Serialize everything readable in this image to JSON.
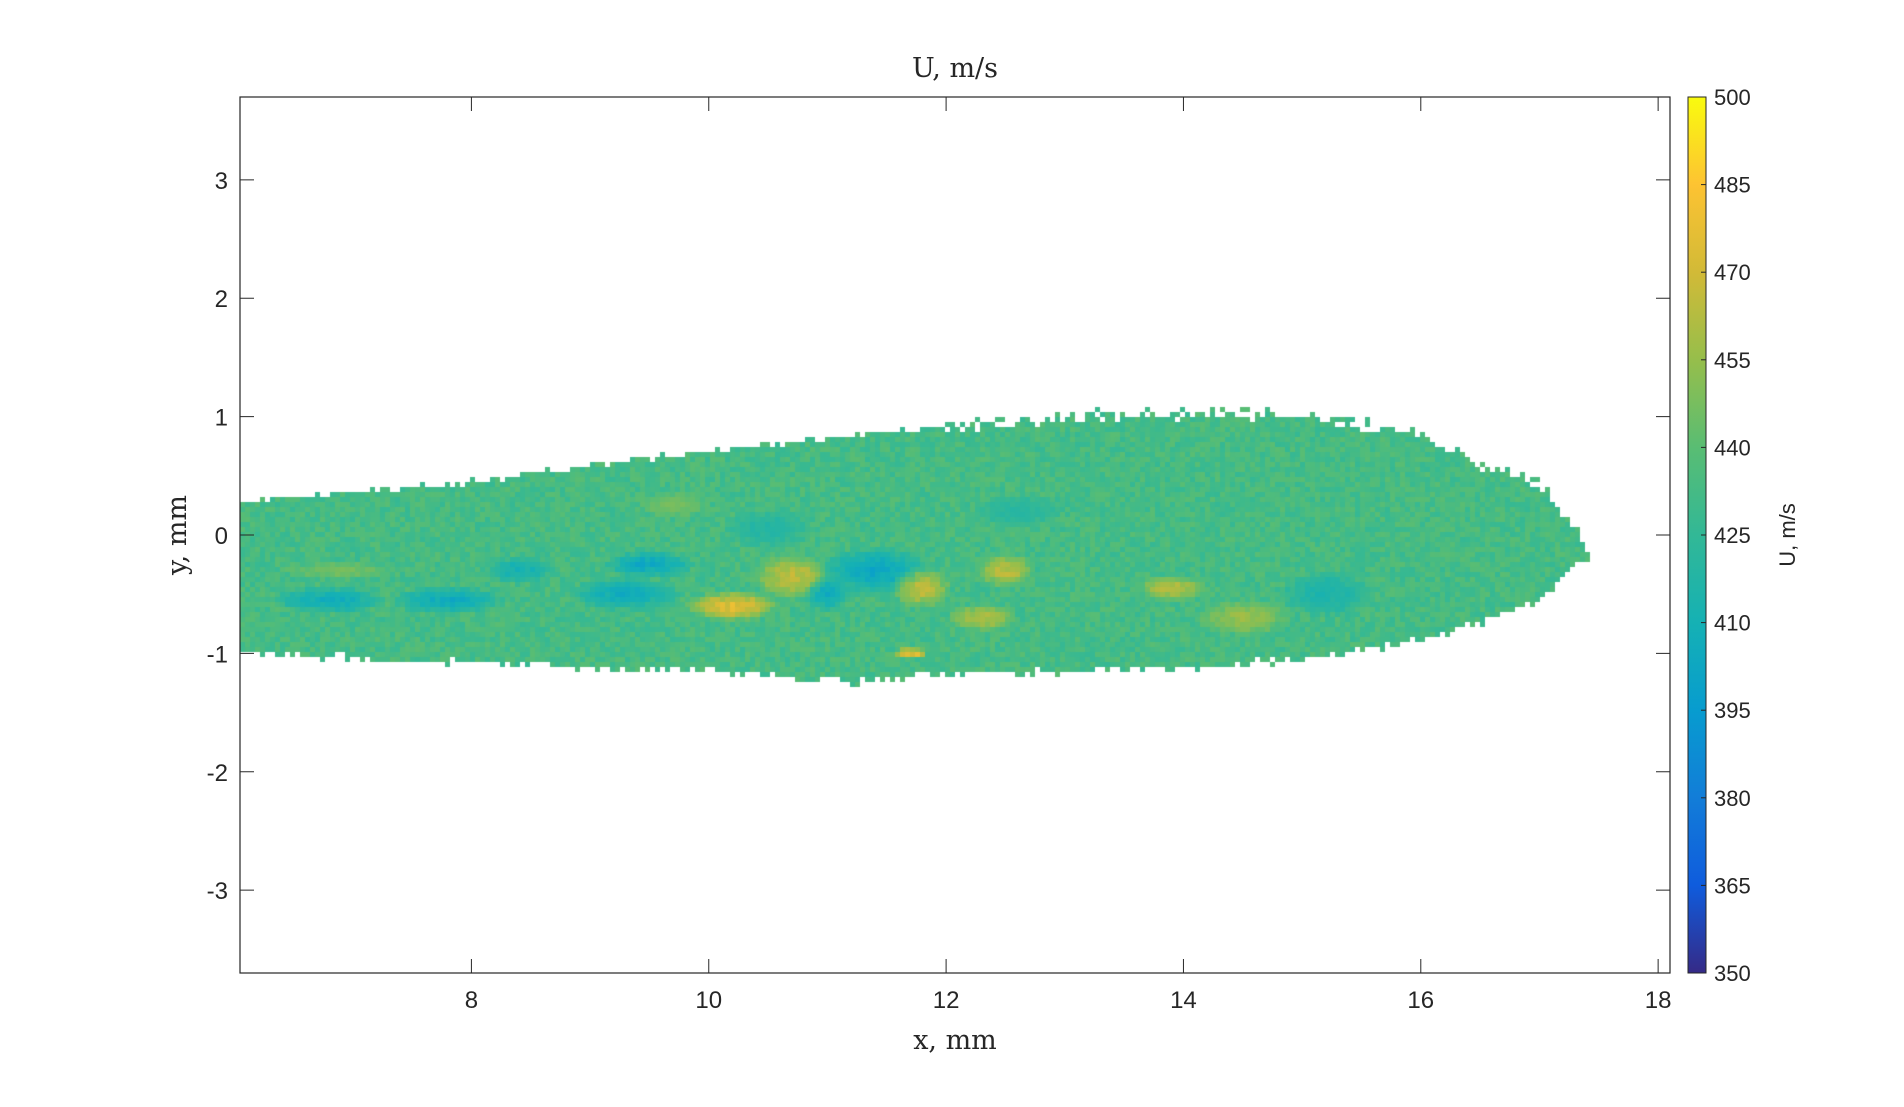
{
  "chart_data": {
    "type": "heatmap",
    "title": "U, m/s",
    "xlabel": "x, mm",
    "ylabel": "y, mm",
    "xlim": [
      6.05,
      18.1
    ],
    "ylim": [
      -3.7,
      3.7
    ],
    "xticks": [
      8,
      10,
      12,
      14,
      16,
      18
    ],
    "yticks": [
      -3,
      -2,
      -1,
      0,
      1,
      2,
      3
    ],
    "colorbar": {
      "label": "U, m/s",
      "range": [
        350,
        500
      ],
      "ticks": [
        350,
        365,
        380,
        395,
        410,
        425,
        440,
        455,
        470,
        485,
        500
      ],
      "colormap": "parula"
    },
    "field": {
      "description_values": "jet velocity field; background value about 433 m/s",
      "base_value": 433,
      "jet_upper_edge": [
        [
          6.05,
          0.28
        ],
        [
          8,
          0.45
        ],
        [
          10,
          0.72
        ],
        [
          11,
          0.82
        ],
        [
          12,
          0.92
        ],
        [
          13,
          1.0
        ],
        [
          14,
          1.02
        ],
        [
          15,
          1.02
        ],
        [
          16,
          0.85
        ],
        [
          16.5,
          0.6
        ],
        [
          17.0,
          0.45
        ],
        [
          17.45,
          -0.15
        ]
      ],
      "jet_lower_edge": [
        [
          6.05,
          -1.0
        ],
        [
          8,
          -1.08
        ],
        [
          10,
          -1.15
        ],
        [
          11.2,
          -1.25
        ],
        [
          12,
          -1.18
        ],
        [
          13,
          -1.15
        ],
        [
          14,
          -1.12
        ],
        [
          15,
          -1.05
        ],
        [
          16,
          -0.9
        ],
        [
          16.5,
          -0.75
        ],
        [
          17.0,
          -0.55
        ],
        [
          17.45,
          -0.15
        ]
      ],
      "regions": [
        {
          "x": 6.9,
          "y": -0.3,
          "rx": 0.5,
          "ry": 0.08,
          "value": 450
        },
        {
          "x": 6.8,
          "y": -0.55,
          "rx": 0.5,
          "ry": 0.12,
          "value": 402
        },
        {
          "x": 7.8,
          "y": -0.55,
          "rx": 0.5,
          "ry": 0.12,
          "value": 400
        },
        {
          "x": 8.4,
          "y": -0.3,
          "rx": 0.3,
          "ry": 0.12,
          "value": 405
        },
        {
          "x": 9.5,
          "y": -0.25,
          "rx": 0.4,
          "ry": 0.12,
          "value": 398
        },
        {
          "x": 9.3,
          "y": -0.5,
          "rx": 0.5,
          "ry": 0.15,
          "value": 402
        },
        {
          "x": 10.2,
          "y": -0.6,
          "rx": 0.4,
          "ry": 0.13,
          "value": 482
        },
        {
          "x": 10.7,
          "y": -0.35,
          "rx": 0.35,
          "ry": 0.2,
          "value": 470
        },
        {
          "x": 11.4,
          "y": -0.3,
          "rx": 0.5,
          "ry": 0.2,
          "value": 398
        },
        {
          "x": 11.0,
          "y": -0.5,
          "rx": 0.2,
          "ry": 0.15,
          "value": 400
        },
        {
          "x": 11.8,
          "y": -0.45,
          "rx": 0.25,
          "ry": 0.18,
          "value": 470
        },
        {
          "x": 12.5,
          "y": -0.3,
          "rx": 0.25,
          "ry": 0.15,
          "value": 470
        },
        {
          "x": 12.3,
          "y": -0.7,
          "rx": 0.3,
          "ry": 0.12,
          "value": 465
        },
        {
          "x": 13.9,
          "y": -0.45,
          "rx": 0.3,
          "ry": 0.12,
          "value": 468
        },
        {
          "x": 14.5,
          "y": -0.7,
          "rx": 0.4,
          "ry": 0.15,
          "value": 460
        },
        {
          "x": 15.2,
          "y": -0.5,
          "rx": 0.4,
          "ry": 0.2,
          "value": 410
        },
        {
          "x": 11.7,
          "y": -1.0,
          "rx": 0.15,
          "ry": 0.05,
          "value": 490
        },
        {
          "x": 10.5,
          "y": 0.05,
          "rx": 0.4,
          "ry": 0.18,
          "value": 415
        },
        {
          "x": 12.6,
          "y": 0.2,
          "rx": 0.4,
          "ry": 0.15,
          "value": 418
        },
        {
          "x": 9.7,
          "y": 0.25,
          "rx": 0.3,
          "ry": 0.12,
          "value": 450
        }
      ]
    }
  }
}
